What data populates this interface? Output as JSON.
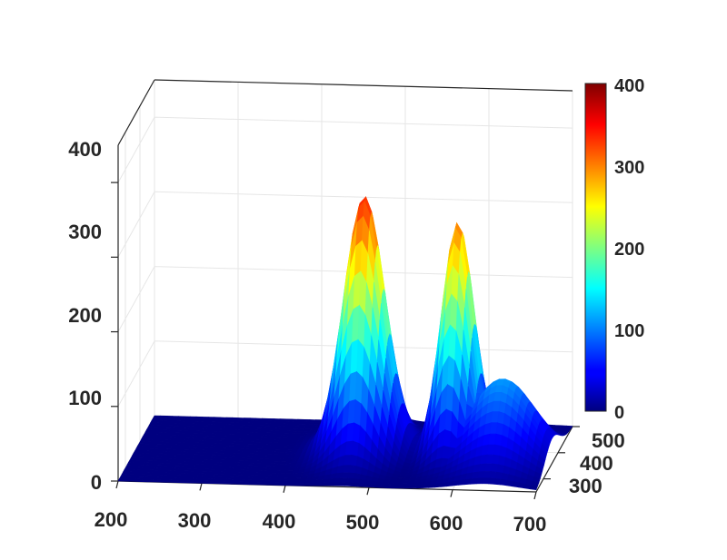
{
  "chart_data": {
    "type": "surface",
    "title": "",
    "xlabel": "",
    "ylabel": "",
    "zlabel": "",
    "colormap": "jet",
    "grid": true,
    "colorbar": {
      "placement": "right",
      "range": [
        0,
        400
      ],
      "ticks": [
        {
          "value": 0,
          "label": "0"
        },
        {
          "value": 100,
          "label": "100"
        },
        {
          "value": 200,
          "label": "200"
        },
        {
          "value": 300,
          "label": "300"
        },
        {
          "value": 400,
          "label": "400"
        }
      ]
    },
    "x_axis": {
      "range": [
        200,
        700
      ],
      "ticks": [
        {
          "value": 200,
          "label": "200"
        },
        {
          "value": 300,
          "label": "300"
        },
        {
          "value": 400,
          "label": "400"
        },
        {
          "value": 500,
          "label": "500"
        },
        {
          "value": 600,
          "label": "600"
        },
        {
          "value": 700,
          "label": "700"
        }
      ]
    },
    "y_axis": {
      "range": [
        250,
        500
      ],
      "ticks": [
        {
          "value": 300,
          "label": "300"
        },
        {
          "value": 400,
          "label": "400"
        },
        {
          "value": 500,
          "label": "500"
        }
      ]
    },
    "z_axis": {
      "range": [
        0,
        450
      ],
      "ticks": [
        {
          "value": 0,
          "label": "0"
        },
        {
          "value": 100,
          "label": "100"
        },
        {
          "value": 200,
          "label": "200"
        },
        {
          "value": 300,
          "label": "300"
        },
        {
          "value": 400,
          "label": "400"
        }
      ]
    },
    "peaks": [
      {
        "x": 470,
        "z": 340
      },
      {
        "x": 580,
        "z": 305
      }
    ]
  }
}
